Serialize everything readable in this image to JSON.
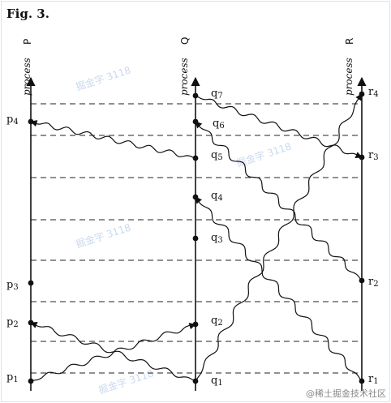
{
  "figure": {
    "title": "Fig. 3."
  },
  "processes": [
    {
      "id": "P",
      "label": "process",
      "letter": "P"
    },
    {
      "id": "Q",
      "label": "process",
      "letter": "Q"
    },
    {
      "id": "R",
      "label": "process",
      "letter": "R"
    }
  ],
  "events": {
    "P": [
      {
        "name": "p",
        "sub": "1"
      },
      {
        "name": "p",
        "sub": "2"
      },
      {
        "name": "p",
        "sub": "3"
      },
      {
        "name": "p",
        "sub": "4"
      }
    ],
    "Q": [
      {
        "name": "q",
        "sub": "1"
      },
      {
        "name": "q",
        "sub": "2"
      },
      {
        "name": "q",
        "sub": "3"
      },
      {
        "name": "q",
        "sub": "4"
      },
      {
        "name": "q",
        "sub": "5"
      },
      {
        "name": "q",
        "sub": "6"
      },
      {
        "name": "q",
        "sub": "7"
      }
    ],
    "R": [
      {
        "name": "r",
        "sub": "1"
      },
      {
        "name": "r",
        "sub": "2"
      },
      {
        "name": "r",
        "sub": "3"
      },
      {
        "name": "r",
        "sub": "4"
      }
    ]
  },
  "messages": [
    {
      "from": "p1",
      "to": "q2"
    },
    {
      "from": "q1",
      "to": "p2"
    },
    {
      "from": "q1",
      "to": "r4"
    },
    {
      "from": "r1",
      "to": "q4"
    },
    {
      "from": "r2",
      "to": "q6"
    },
    {
      "from": "q5",
      "to": "p4"
    },
    {
      "from": "q7",
      "to": "r3"
    }
  ],
  "watermark": "掘金字 3118",
  "footer": "@稀土掘金技术社区"
}
